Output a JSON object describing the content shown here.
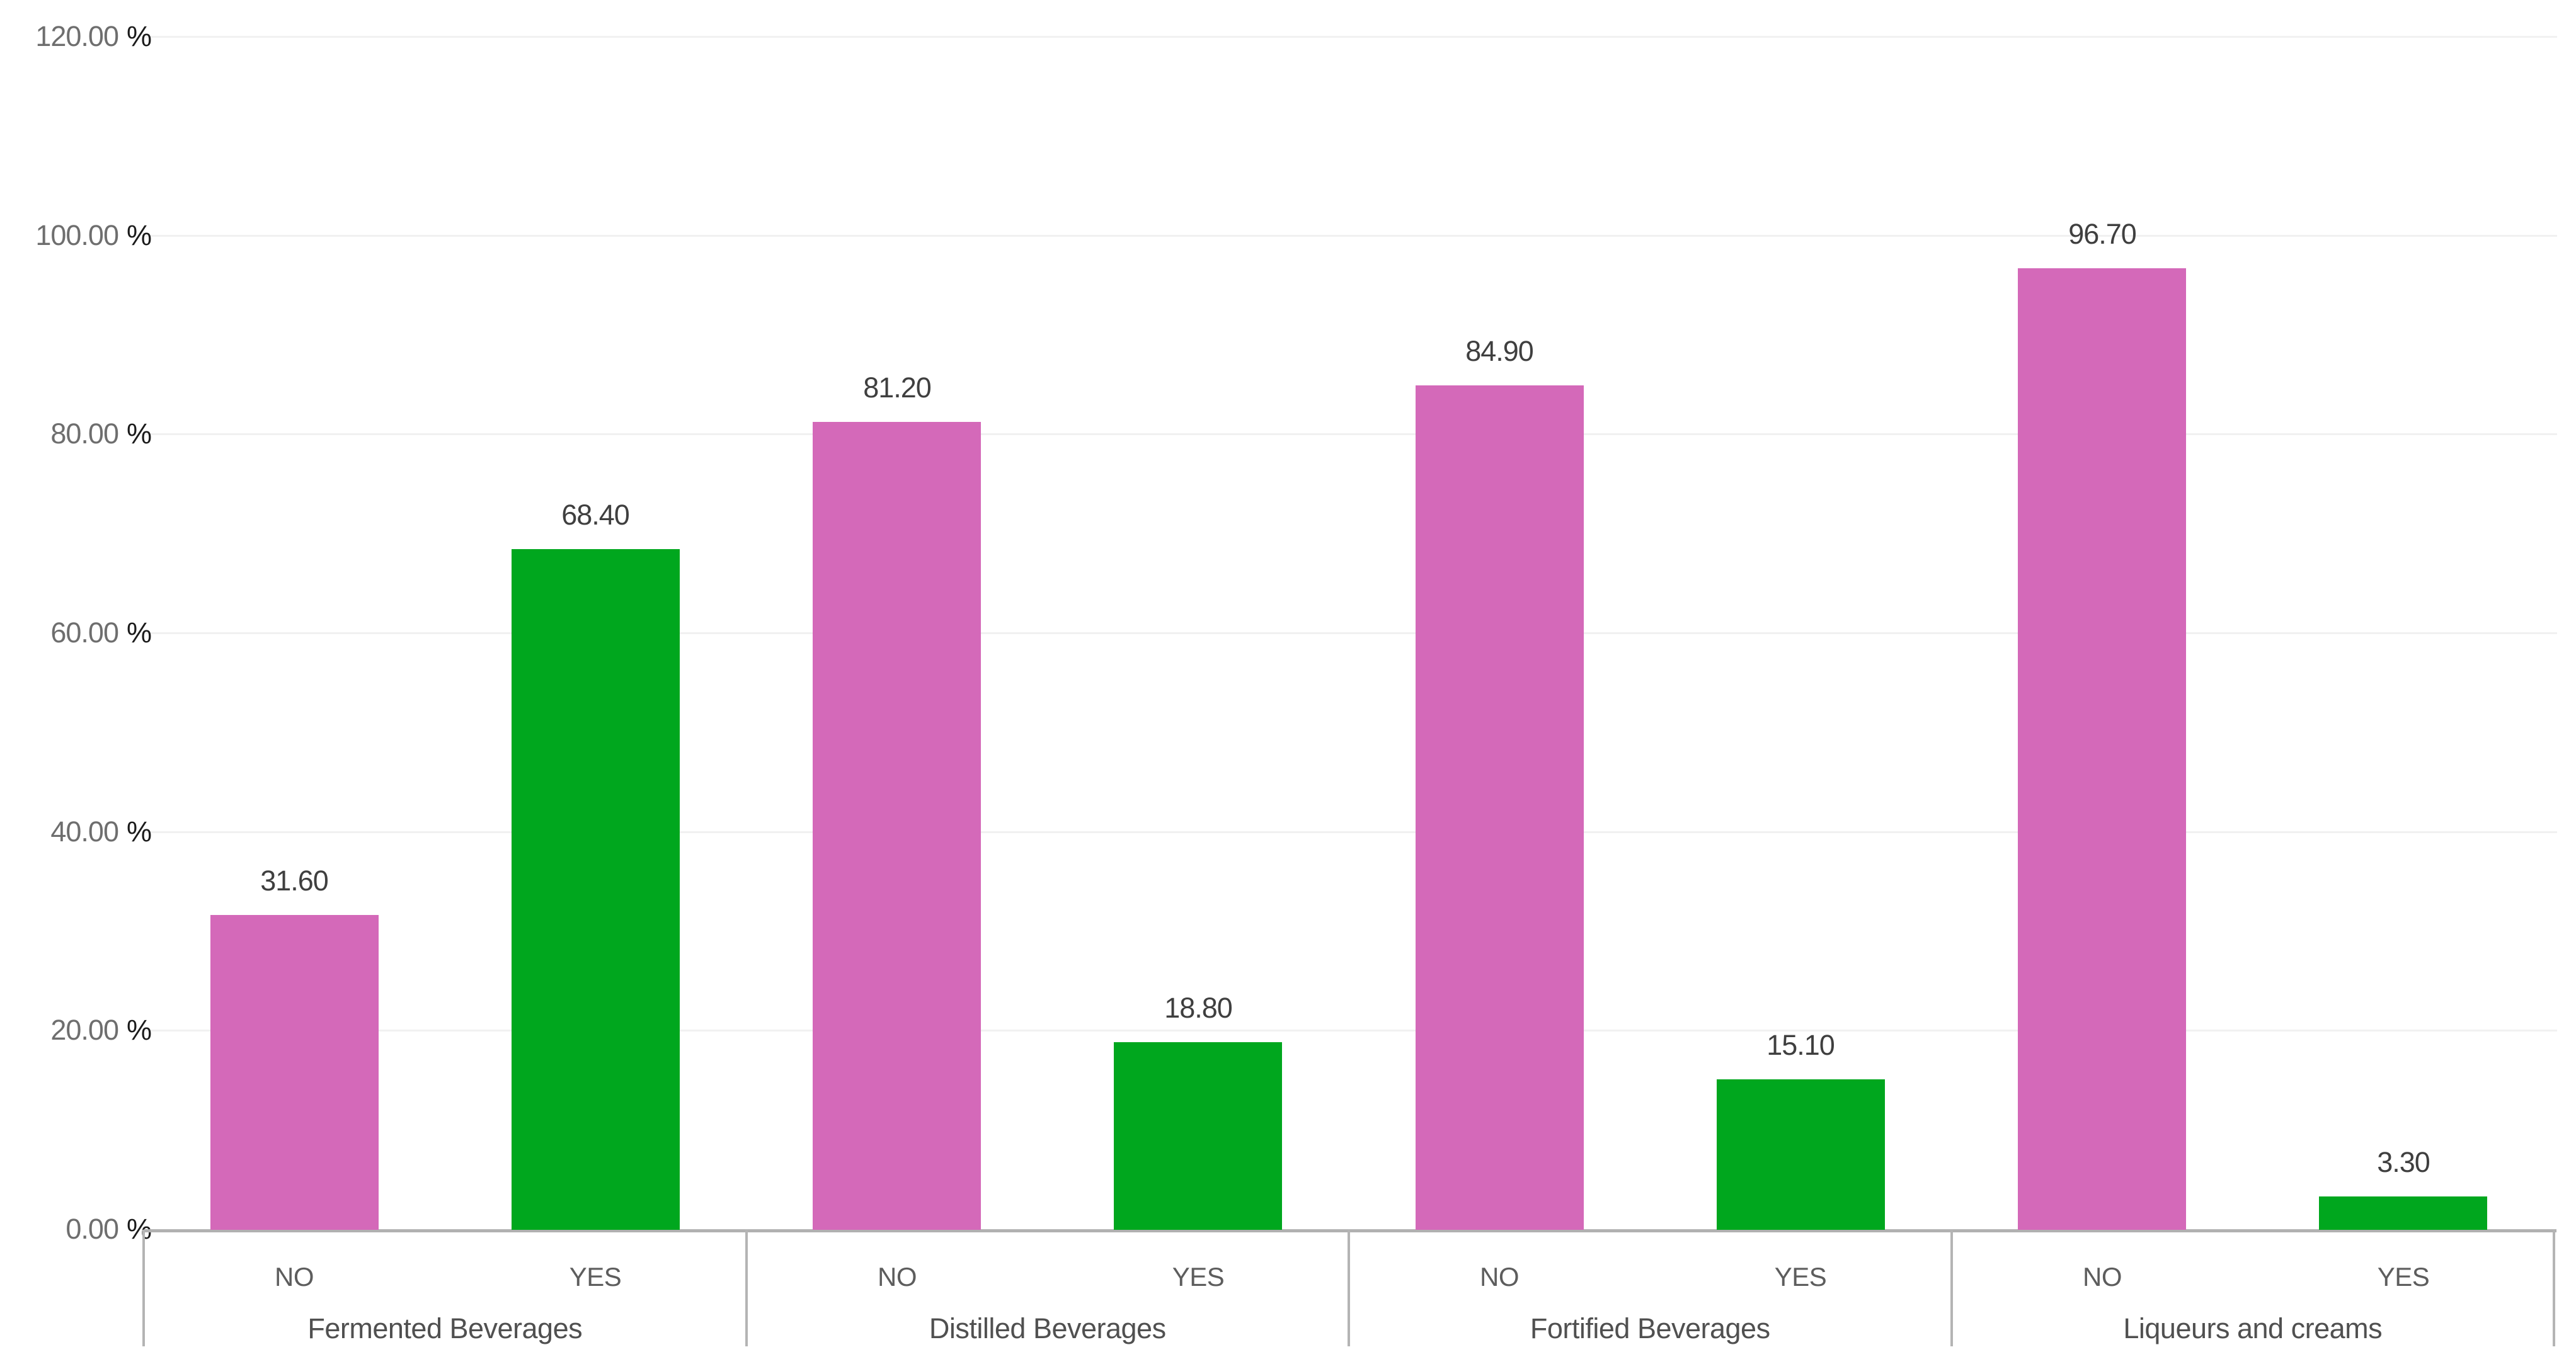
{
  "chart_data": {
    "type": "bar",
    "title": "",
    "unit_suffix": "%",
    "y_axis": {
      "min": 0,
      "max": 120,
      "grid": true,
      "ticks": [
        {
          "value": 120,
          "label": "120.00"
        },
        {
          "value": 100,
          "label": "100.00"
        },
        {
          "value": 80,
          "label": "80.00"
        },
        {
          "value": 60,
          "label": "60.00"
        },
        {
          "value": 40,
          "label": "40.00"
        },
        {
          "value": 20,
          "label": "20.00"
        },
        {
          "value": 0,
          "label": "0.00"
        }
      ]
    },
    "series_colors": {
      "NO": "#d469b9",
      "YES": "#00a71e"
    },
    "groups": [
      {
        "label": "Fermented Beverages",
        "bars": [
          {
            "category": "NO",
            "value": 31.6,
            "value_label": "31.60"
          },
          {
            "category": "YES",
            "value": 68.4,
            "value_label": "68.40"
          }
        ]
      },
      {
        "label": "Distilled Beverages",
        "bars": [
          {
            "category": "NO",
            "value": 81.2,
            "value_label": "81.20"
          },
          {
            "category": "YES",
            "value": 18.8,
            "value_label": "18.80"
          }
        ]
      },
      {
        "label": "Fortified Beverages",
        "bars": [
          {
            "category": "NO",
            "value": 84.9,
            "value_label": "84.90"
          },
          {
            "category": "YES",
            "value": 15.1,
            "value_label": "15.10"
          }
        ]
      },
      {
        "label": "Liqueurs and creams",
        "bars": [
          {
            "category": "NO",
            "value": 96.7,
            "value_label": "96.70"
          },
          {
            "category": "YES",
            "value": 3.3,
            "value_label": "3.30"
          }
        ]
      }
    ]
  }
}
